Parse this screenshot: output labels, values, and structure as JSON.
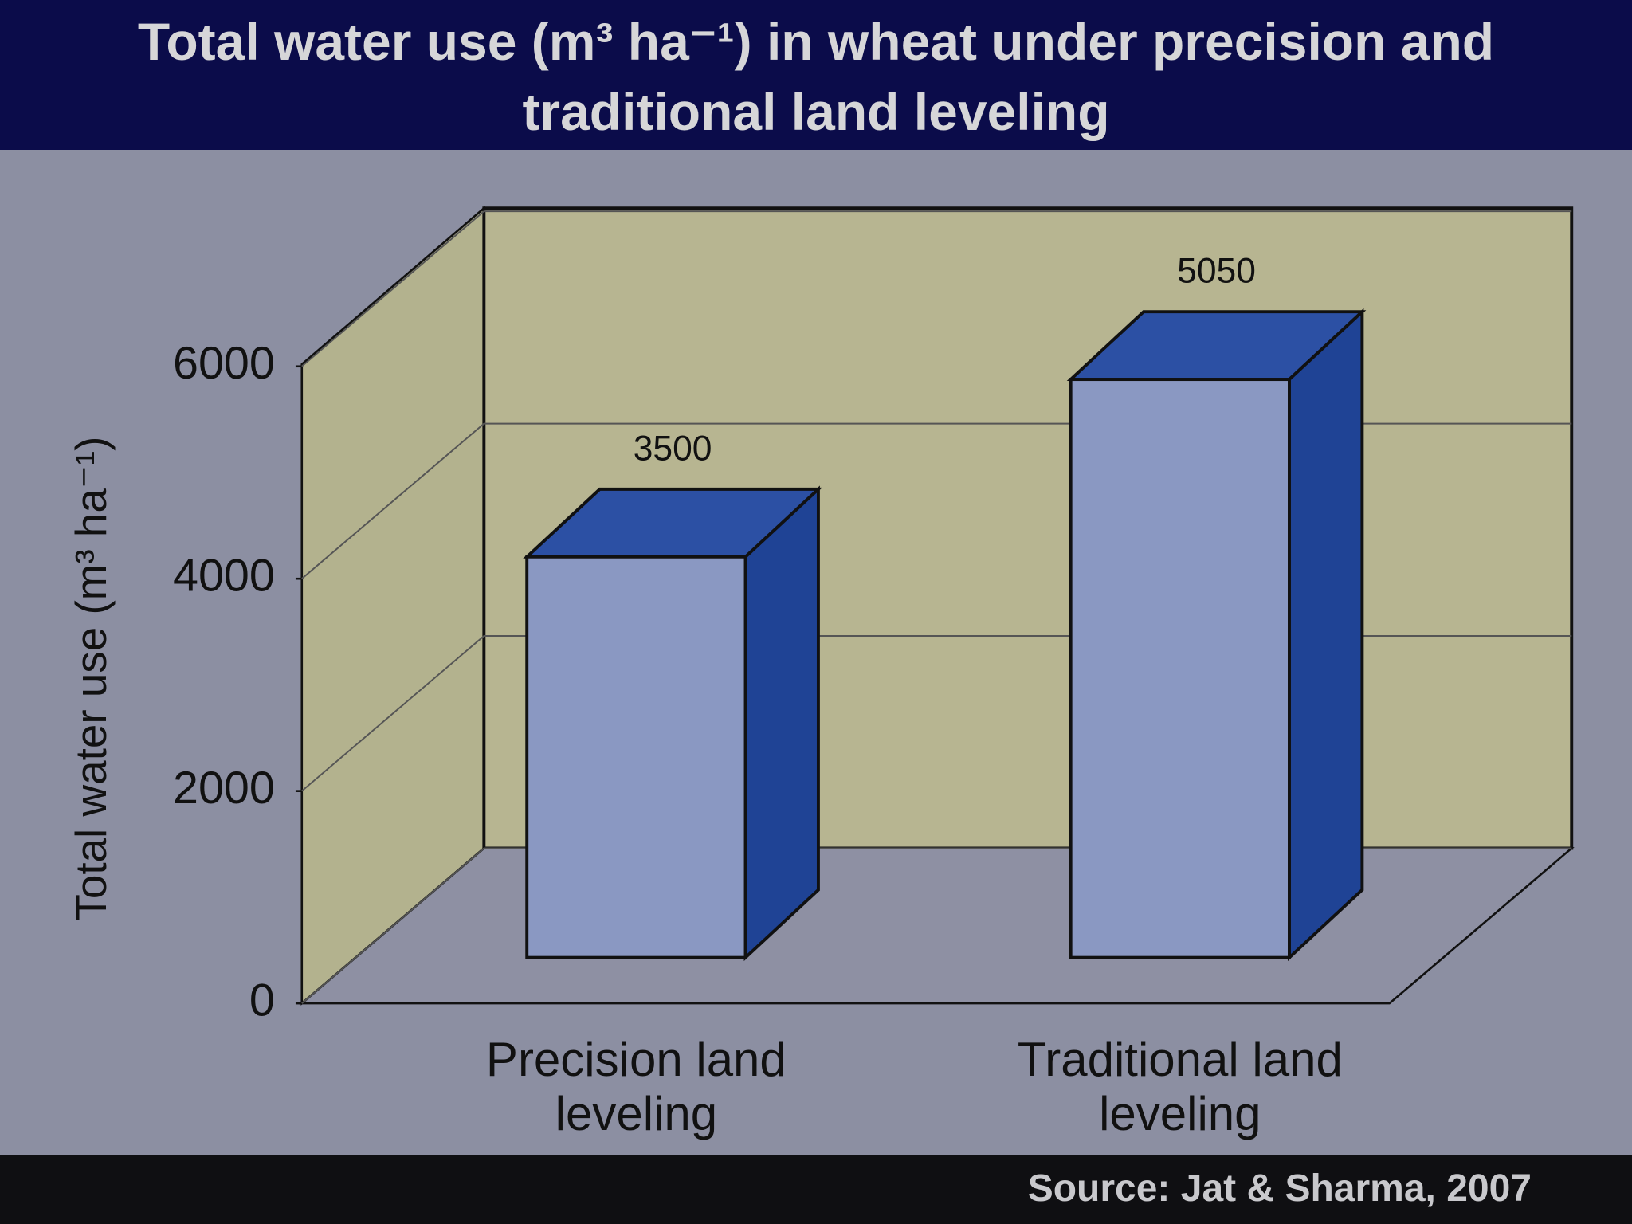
{
  "chart_data": {
    "type": "bar3d",
    "title": "Total water use (m³ ha⁻¹) in wheat under precision and traditional land leveling",
    "y_label": "Total water use (m³ ha⁻¹)",
    "source": "Source: Jat & Sharma, 2007",
    "categories": [
      "Precision land leveling",
      "Traditional land leveling"
    ],
    "values": [
      3500,
      5050
    ],
    "color": "#8a98c2",
    "ylim": [
      0,
      6000
    ],
    "yticks": [
      0,
      2000,
      4000,
      6000
    ],
    "grid": true
  }
}
